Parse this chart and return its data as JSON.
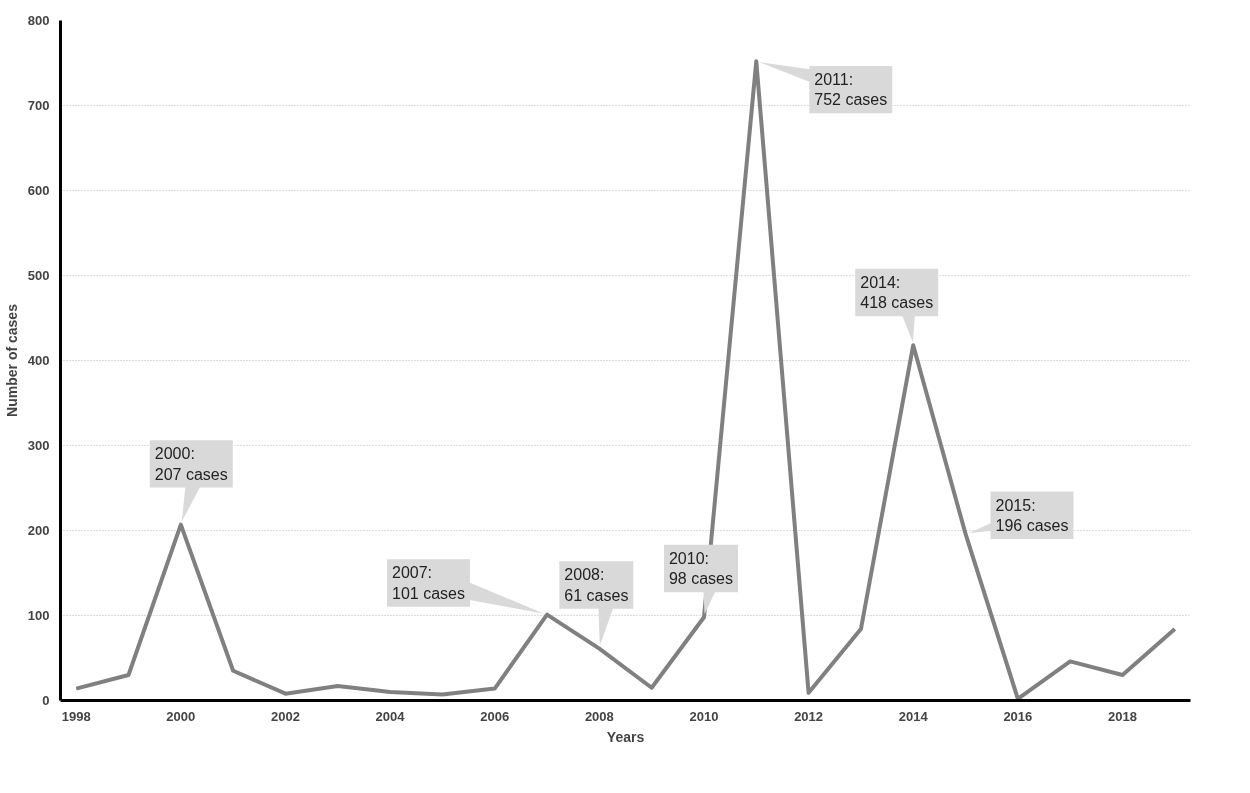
{
  "chart_data": {
    "type": "line",
    "xlabel": "Years",
    "ylabel": "Number of cases",
    "x": [
      1998,
      1999,
      2000,
      2001,
      2002,
      2003,
      2004,
      2005,
      2006,
      2007,
      2008,
      2009,
      2010,
      2011,
      2012,
      2013,
      2014,
      2015,
      2016,
      2017,
      2018,
      2019
    ],
    "series": [
      {
        "color": "#808080",
        "values": [
          14,
          30,
          207,
          35,
          8,
          17,
          10,
          7,
          14,
          101,
          61,
          15,
          98,
          752,
          9,
          84,
          418,
          196,
          2,
          46,
          30,
          84
        ]
      }
    ],
    "xlim": [
      1997.7,
      2019.3
    ],
    "xticks": [
      1998,
      2000,
      2002,
      2004,
      2006,
      2008,
      2010,
      2012,
      2014,
      2016,
      2018
    ],
    "ylim": [
      0,
      800
    ],
    "yticks": [
      0,
      100,
      200,
      300,
      400,
      500,
      600,
      700,
      800
    ],
    "grid": "y",
    "marker": "none",
    "line_style": "solid",
    "annotations": [
      {
        "text": "2000:\n207 cases",
        "x": 2000,
        "y": 207
      },
      {
        "text": "2007:\n101 cases",
        "x": 2007,
        "y": 101
      },
      {
        "text": "2008:\n61 cases",
        "x": 2008,
        "y": 61
      },
      {
        "text": "2010:\n98 cases",
        "x": 2010,
        "y": 98
      },
      {
        "text": "2011:\n752 cases",
        "x": 2011,
        "y": 752
      },
      {
        "text": "2014:\n418 cases",
        "x": 2014,
        "y": 418
      },
      {
        "text": "2015:\n196 cases",
        "x": 2015,
        "y": 196
      }
    ]
  }
}
